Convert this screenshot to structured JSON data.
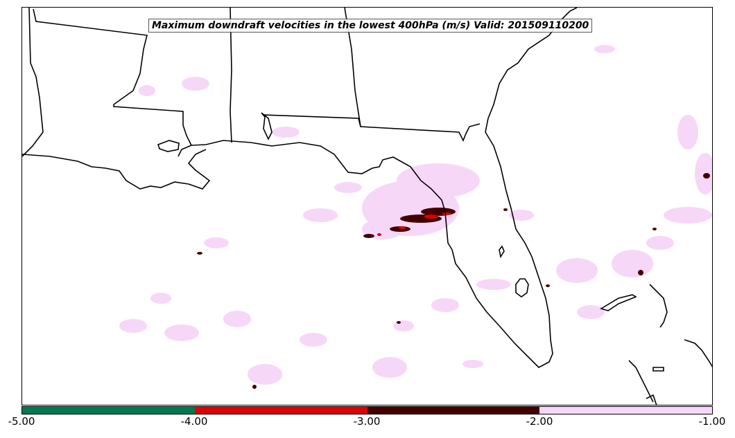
{
  "title": "Maximum downdraft velocities in the lowest 400hPa (m/s) Valid: 201509110200",
  "colorbar": {
    "segments": [
      {
        "from": -5.0,
        "to": -4.0,
        "color": "#007a4f"
      },
      {
        "from": -4.0,
        "to": -3.0,
        "color": "#e00000"
      },
      {
        "from": -3.0,
        "to": -2.0,
        "color": "#440000"
      },
      {
        "from": -2.0,
        "to": -1.0,
        "color": "#f7d7f7"
      }
    ],
    "ticks": [
      "-5.00",
      "-4.00",
      "-3.00",
      "-2.00",
      "-1.00"
    ]
  },
  "colors": {
    "land_outline": "#000000",
    "light_pink": "#f7d7f7",
    "dark_red": "#440000",
    "red": "#e00000"
  }
}
